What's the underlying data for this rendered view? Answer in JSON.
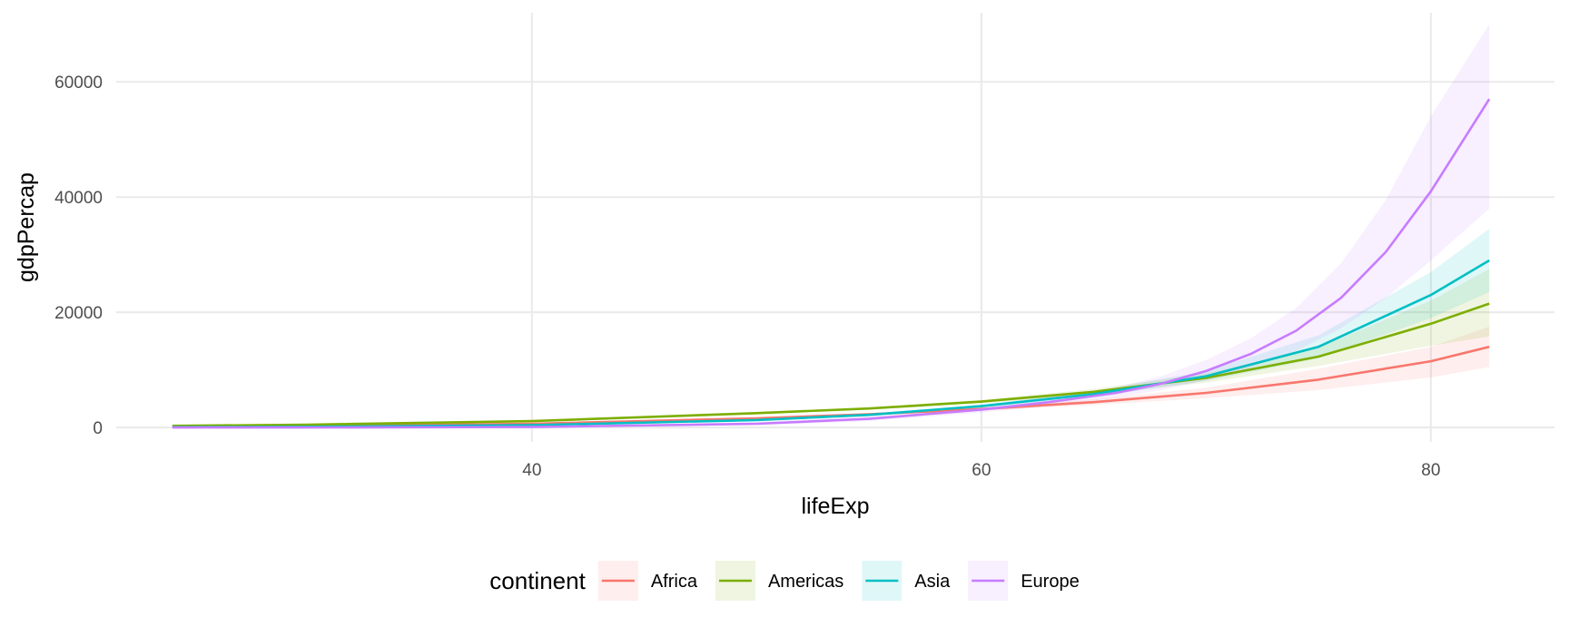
{
  "chart_data": {
    "type": "line",
    "title": "",
    "xlabel": "lifeExp",
    "ylabel": "gdpPercap",
    "xlim": [
      21.5,
      85.5
    ],
    "ylim": [
      -2500,
      72000
    ],
    "x_ticks": [
      40,
      60,
      80
    ],
    "x_tick_labels": [
      "40",
      "60",
      "80"
    ],
    "y_ticks": [
      0,
      20000,
      40000,
      60000
    ],
    "y_tick_labels": [
      "0",
      "20000",
      "40000",
      "60000"
    ],
    "grid": true,
    "legend": {
      "title": "continent",
      "position": "bottom"
    },
    "series": [
      {
        "name": "Africa",
        "color": "#F8766D",
        "x": [
          24,
          30,
          40,
          50,
          55,
          60,
          65,
          70,
          75,
          80,
          82.6
        ],
        "y": [
          120,
          250,
          650,
          1600,
          2300,
          3200,
          4400,
          6000,
          8300,
          11500,
          14000
        ],
        "band_low": [
          100,
          220,
          600,
          1450,
          2100,
          2900,
          3900,
          5100,
          6500,
          8700,
          10500
        ],
        "band_high": [
          140,
          280,
          700,
          1750,
          2500,
          3500,
          4900,
          6900,
          10200,
          14000,
          17500
        ]
      },
      {
        "name": "Americas",
        "color": "#7CAE00",
        "x": [
          24,
          30,
          40,
          50,
          55,
          60,
          65,
          70,
          75,
          80,
          82.6
        ],
        "y": [
          280,
          500,
          1100,
          2500,
          3300,
          4500,
          6200,
          8600,
          12300,
          18000,
          21500
        ],
        "band_low": [
          230,
          430,
          1000,
          2300,
          3100,
          4200,
          5700,
          7800,
          10700,
          14200,
          15800
        ],
        "band_high": [
          330,
          570,
          1200,
          2700,
          3500,
          4800,
          6700,
          9400,
          13900,
          22000,
          27500
        ]
      },
      {
        "name": "Asia",
        "color": "#00BFC4",
        "x": [
          24,
          30,
          40,
          50,
          55,
          60,
          65,
          70,
          75,
          80,
          82.6
        ],
        "y": [
          60,
          130,
          420,
          1300,
          2200,
          3700,
          5800,
          8900,
          14000,
          23000,
          29000
        ],
        "band_low": [
          40,
          100,
          360,
          1150,
          1950,
          3400,
          5300,
          8100,
          12000,
          19000,
          23500
        ],
        "band_high": [
          80,
          160,
          480,
          1450,
          2450,
          4000,
          6300,
          9800,
          16000,
          27000,
          34500
        ]
      },
      {
        "name": "Europe",
        "color": "#C77CFF",
        "x": [
          24,
          30,
          40,
          50,
          55,
          60,
          63,
          66,
          68,
          70,
          72,
          74,
          76,
          78,
          80,
          82.6
        ],
        "y": [
          0,
          10,
          80,
          650,
          1500,
          3100,
          4400,
          6000,
          7600,
          9800,
          12800,
          16800,
          22500,
          30500,
          41000,
          57000
        ],
        "band_low": [
          0,
          0,
          10,
          400,
          1100,
          2600,
          3700,
          5200,
          6500,
          8200,
          10400,
          13300,
          17200,
          22500,
          29000,
          38000
        ],
        "band_high": [
          100,
          120,
          200,
          950,
          1950,
          3650,
          5200,
          7000,
          8900,
          11700,
          15500,
          20700,
          28500,
          39500,
          54000,
          70000
        ]
      }
    ]
  }
}
